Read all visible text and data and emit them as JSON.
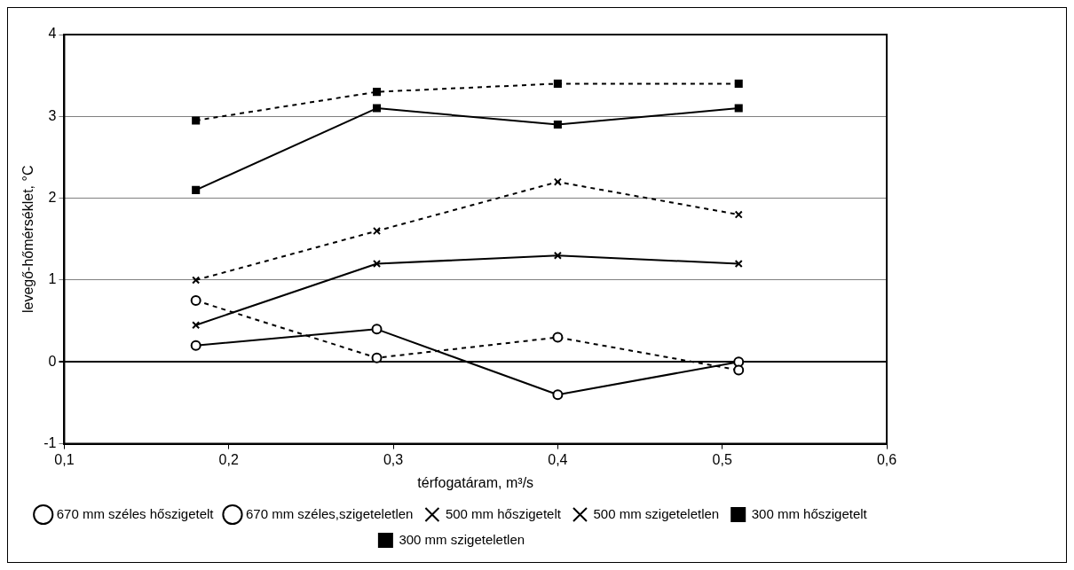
{
  "chart_data": {
    "type": "line",
    "xlabel": "térfogatáram, m³/s",
    "ylabel": "levegő-hőmérséklet, °C",
    "x": [
      0.18,
      0.29,
      0.4,
      0.51
    ],
    "xlim": [
      0.1,
      0.6
    ],
    "xticks": [
      {
        "value": 0.1,
        "label": "0,1"
      },
      {
        "value": 0.2,
        "label": "0,2"
      },
      {
        "value": 0.3,
        "label": "0,3"
      },
      {
        "value": 0.4,
        "label": "0,4"
      },
      {
        "value": 0.5,
        "label": "0,5"
      },
      {
        "value": 0.6,
        "label": "0,6"
      }
    ],
    "ylim": [
      -1,
      4
    ],
    "yticks": [
      -1,
      0,
      1,
      2,
      3,
      4
    ],
    "grid": "y",
    "legend": "bottom",
    "series": [
      {
        "name": "670 mm széles hőszigetelt",
        "color": "#000000",
        "marker": "circle",
        "line_style": "dashed",
        "values": [
          0.75,
          0.05,
          0.3,
          -0.1
        ]
      },
      {
        "name": "670 mm széles,szigeteletlen",
        "color": "#000000",
        "marker": "circle",
        "line_style": "solid",
        "values": [
          0.2,
          0.4,
          -0.4,
          0
        ]
      },
      {
        "name": "500 mm hőszigetelt",
        "color": "#000000",
        "marker": "cross",
        "line_style": "dashed",
        "values": [
          1.0,
          1.6,
          2.2,
          1.8
        ]
      },
      {
        "name": "500 mm szigeteletlen",
        "color": "#000000",
        "marker": "cross",
        "line_style": "solid",
        "values": [
          0.45,
          1.2,
          1.3,
          1.2
        ]
      },
      {
        "name": "300 mm hőszigetelt",
        "color": "#000000",
        "marker": "square",
        "line_style": "dashed",
        "values": [
          2.95,
          3.3,
          3.4,
          3.4
        ]
      },
      {
        "name": "300 mm szigeteletlen",
        "color": "#000000",
        "marker": "square",
        "line_style": "solid",
        "values": [
          2.1,
          3.1,
          2.9,
          3.1
        ]
      }
    ]
  }
}
